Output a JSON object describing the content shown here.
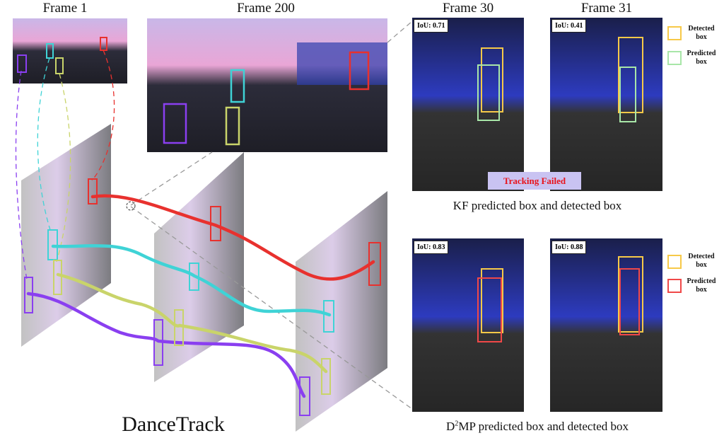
{
  "frames": {
    "frame1": "Frame 1",
    "frame200": "Frame 200",
    "frame30": "Frame 30",
    "frame31": "Frame 31"
  },
  "kf_panel": {
    "iou_frame30": "IoU: 0.71",
    "iou_frame31": "IoU: 0.41",
    "status": "Tracking Failed",
    "legend": [
      {
        "label": "Detected box",
        "color": "#f7c948"
      },
      {
        "label": "Predicted box",
        "color": "#a8e6a8"
      }
    ],
    "caption": "KF predicted box and detected box"
  },
  "d2mp_panel": {
    "iou_frame30": "IoU: 0.83",
    "iou_frame31": "IoU: 0.88",
    "legend": [
      {
        "label": "Detected box",
        "color": "#f7c948"
      },
      {
        "label": "Predicted box",
        "color": "#f04848"
      }
    ],
    "caption_prefix": "D",
    "caption_sup": "2",
    "caption_rest": "MP predicted box and detected box"
  },
  "dataset_label": "DanceTrack",
  "track_colors": {
    "red": "#e8312e",
    "cyan": "#3fd3d6",
    "yellow": "#c9d46a",
    "purple": "#8a3ff0"
  }
}
